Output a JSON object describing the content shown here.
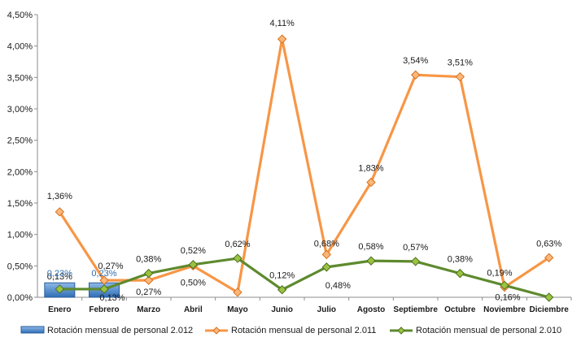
{
  "chart_data": {
    "type": "line",
    "categories": [
      "Enero",
      "Febrero",
      "Marzo",
      "Abril",
      "Mayo",
      "Junio",
      "Julio",
      "Agosto",
      "Septiembre",
      "Octubre",
      "Noviembre",
      "Diciembre"
    ],
    "ylim": [
      0,
      4.5
    ],
    "yticks": [
      "0,00%",
      "0,50%",
      "1,00%",
      "1,50%",
      "2,00%",
      "2,50%",
      "3,00%",
      "3,50%",
      "4,00%",
      "4,50%"
    ],
    "grid": false,
    "legend_position": "bottom",
    "series": [
      {
        "name": "Rotación mensual  de personal 2.012",
        "type": "bar",
        "color": "#3d7ec9",
        "values": [
          0.23,
          0.23,
          null,
          null,
          null,
          null,
          null,
          null,
          null,
          null,
          null,
          null
        ],
        "labels": [
          "0,23%",
          "0,23%",
          "",
          "",
          "",
          "",
          "",
          "",
          "",
          "",
          "",
          ""
        ]
      },
      {
        "name": "Rotación mensual  de personal 2.011",
        "type": "line",
        "color": "#f79646",
        "values": [
          1.36,
          0.27,
          0.27,
          0.5,
          0.08,
          4.11,
          0.68,
          1.83,
          3.54,
          3.51,
          0.16,
          0.63
        ],
        "labels": [
          "1,36%",
          "0,27%",
          "0,27%",
          "0,50%",
          "",
          "4,11%",
          "0,68%",
          "1,83%",
          "3,54%",
          "3,51%",
          "0,16%",
          "0,63%"
        ]
      },
      {
        "name": "Rotación mensual  de personal 2.010",
        "type": "line",
        "color": "#5e8a2e",
        "values": [
          0.13,
          0.13,
          0.38,
          0.52,
          0.62,
          0.12,
          0.48,
          0.58,
          0.57,
          0.38,
          0.19,
          0.0
        ],
        "labels": [
          "0,13%",
          "0,13%",
          "0,38%",
          "0,52%",
          "0,62%",
          "0,12%",
          "0,48%",
          "0,58%",
          "0,57%",
          "0,38%",
          "0,19%",
          ""
        ]
      }
    ]
  }
}
